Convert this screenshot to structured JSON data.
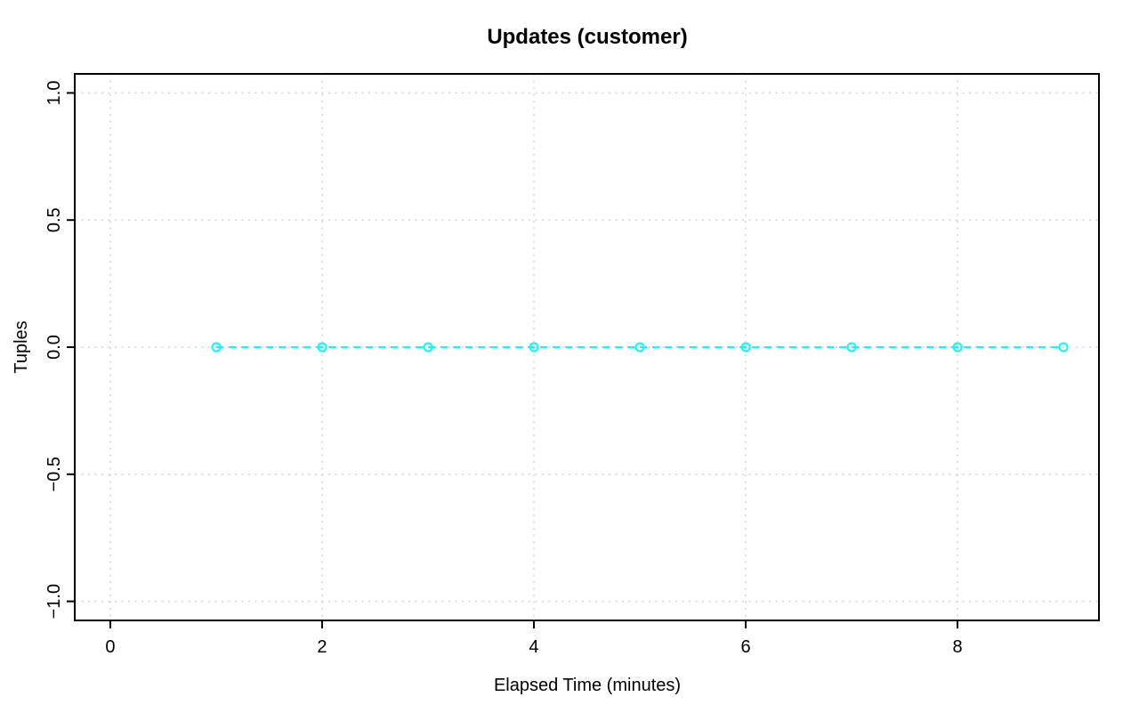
{
  "chart_data": {
    "type": "line",
    "title": "Updates (customer)",
    "xlabel": "Elapsed Time (minutes)",
    "ylabel": "Tuples",
    "series": [
      {
        "name": "Updates (customer)",
        "x": [
          1,
          2,
          3,
          4,
          5,
          6,
          7,
          8,
          9
        ],
        "y": [
          0,
          0,
          0,
          0,
          0,
          0,
          0,
          0,
          0
        ]
      }
    ],
    "marker": "open-circle",
    "line_style": "dashed",
    "series_color": "#00FFFF",
    "x_ticks": {
      "values": [
        0,
        2,
        4,
        6,
        8
      ],
      "labels": [
        "0",
        "2",
        "4",
        "6",
        "8"
      ]
    },
    "y_ticks": {
      "values": [
        -1,
        -0.5,
        0,
        0.5,
        1
      ],
      "labels": [
        "−1.0",
        "−0.5",
        "0.0",
        "0.5",
        "1.0"
      ]
    },
    "xlim": [
      -0.336,
      9.336
    ],
    "ylim": [
      -1.075,
      1.075
    ],
    "grid": true,
    "grid_style": "dotted",
    "grid_color": "#D3D3D3",
    "axis_color": "#000000",
    "background": "#FFFFFF",
    "legend": "none"
  }
}
